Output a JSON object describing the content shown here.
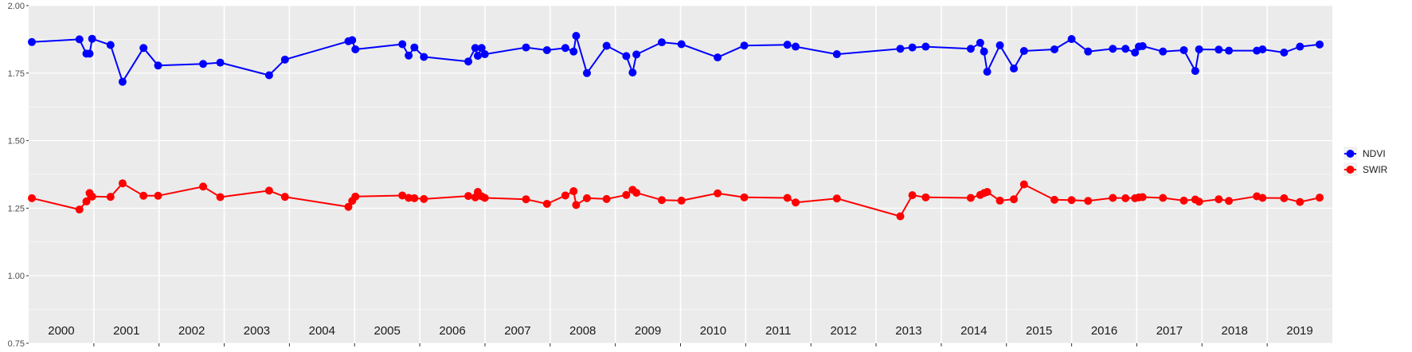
{
  "chart_data": {
    "type": "line",
    "ylim": [
      0.75,
      2.0
    ],
    "xlim": [
      2000.0,
      2020.0
    ],
    "y_ticks": [
      "0.75",
      "1.00",
      "1.25",
      "1.50",
      "1.75",
      "2.00"
    ],
    "year_labels": [
      "2000",
      "2001",
      "2002",
      "2003",
      "2004",
      "2005",
      "2006",
      "2007",
      "2008",
      "2009",
      "2010",
      "2011",
      "2012",
      "2013",
      "2014",
      "2015",
      "2016",
      "2017",
      "2018",
      "2019"
    ],
    "grid": true,
    "legend_position": "right",
    "series": [
      {
        "name": "NDVI",
        "color": "#0000FF",
        "points": [
          [
            2000.0,
            1.865
          ],
          [
            2000.75,
            1.875
          ],
          [
            2000.86,
            1.822
          ],
          [
            2000.91,
            1.822
          ],
          [
            2000.95,
            1.877
          ],
          [
            2001.24,
            1.854
          ],
          [
            2001.43,
            1.718
          ],
          [
            2001.76,
            1.843
          ],
          [
            2001.99,
            1.778
          ],
          [
            2002.7,
            1.784
          ],
          [
            2002.97,
            1.789
          ],
          [
            2003.74,
            1.742
          ],
          [
            2003.99,
            1.8
          ],
          [
            2004.99,
            1.868
          ],
          [
            2005.05,
            1.872
          ],
          [
            2005.1,
            1.838
          ],
          [
            2005.84,
            1.857
          ],
          [
            2005.94,
            1.815
          ],
          [
            2006.03,
            1.845
          ],
          [
            2006.18,
            1.81
          ],
          [
            2006.88,
            1.793
          ],
          [
            2006.99,
            1.843
          ],
          [
            2007.03,
            1.814
          ],
          [
            2007.09,
            1.843
          ],
          [
            2007.14,
            1.82
          ],
          [
            2007.79,
            1.845
          ],
          [
            2008.12,
            1.835
          ],
          [
            2008.41,
            1.843
          ],
          [
            2008.54,
            1.83
          ],
          [
            2008.58,
            1.888
          ],
          [
            2008.75,
            1.75
          ],
          [
            2009.06,
            1.851
          ],
          [
            2009.37,
            1.813
          ],
          [
            2009.47,
            1.752
          ],
          [
            2009.53,
            1.819
          ],
          [
            2009.93,
            1.864
          ],
          [
            2010.24,
            1.857
          ],
          [
            2010.81,
            1.808
          ],
          [
            2011.23,
            1.852
          ],
          [
            2011.91,
            1.855
          ],
          [
            2012.04,
            1.848
          ],
          [
            2012.69,
            1.82
          ],
          [
            2013.69,
            1.84
          ],
          [
            2013.88,
            1.845
          ],
          [
            2014.09,
            1.848
          ],
          [
            2014.8,
            1.84
          ],
          [
            2014.95,
            1.862
          ],
          [
            2015.01,
            1.83
          ],
          [
            2015.06,
            1.755
          ],
          [
            2015.26,
            1.853
          ],
          [
            2015.48,
            1.767
          ],
          [
            2015.64,
            1.832
          ],
          [
            2016.12,
            1.838
          ],
          [
            2016.39,
            1.876
          ],
          [
            2016.65,
            1.83
          ],
          [
            2017.04,
            1.84
          ],
          [
            2017.24,
            1.84
          ],
          [
            2017.39,
            1.826
          ],
          [
            2017.45,
            1.848
          ],
          [
            2017.51,
            1.85
          ],
          [
            2017.83,
            1.83
          ],
          [
            2018.16,
            1.835
          ],
          [
            2018.34,
            1.758
          ],
          [
            2018.4,
            1.838
          ],
          [
            2018.71,
            1.837
          ],
          [
            2018.87,
            1.833
          ],
          [
            2019.31,
            1.833
          ],
          [
            2019.4,
            1.838
          ],
          [
            2019.74,
            1.826
          ],
          [
            2019.99,
            1.848
          ],
          [
            2020.3,
            1.856
          ]
        ]
      },
      {
        "name": "SWIR",
        "color": "#FF0000",
        "points": [
          [
            2000.0,
            1.287
          ],
          [
            2000.75,
            1.245
          ],
          [
            2000.86,
            1.275
          ],
          [
            2000.91,
            1.306
          ],
          [
            2000.95,
            1.293
          ],
          [
            2001.24,
            1.292
          ],
          [
            2001.43,
            1.342
          ],
          [
            2001.76,
            1.296
          ],
          [
            2001.99,
            1.296
          ],
          [
            2002.7,
            1.33
          ],
          [
            2002.97,
            1.291
          ],
          [
            2003.74,
            1.315
          ],
          [
            2003.99,
            1.292
          ],
          [
            2004.99,
            1.255
          ],
          [
            2005.05,
            1.277
          ],
          [
            2005.1,
            1.293
          ],
          [
            2005.84,
            1.297
          ],
          [
            2005.94,
            1.288
          ],
          [
            2006.03,
            1.287
          ],
          [
            2006.18,
            1.284
          ],
          [
            2006.88,
            1.295
          ],
          [
            2006.99,
            1.29
          ],
          [
            2007.03,
            1.31
          ],
          [
            2007.09,
            1.294
          ],
          [
            2007.14,
            1.288
          ],
          [
            2007.79,
            1.283
          ],
          [
            2008.12,
            1.266
          ],
          [
            2008.41,
            1.297
          ],
          [
            2008.54,
            1.313
          ],
          [
            2008.58,
            1.262
          ],
          [
            2008.75,
            1.287
          ],
          [
            2009.06,
            1.284
          ],
          [
            2009.37,
            1.299
          ],
          [
            2009.47,
            1.318
          ],
          [
            2009.53,
            1.307
          ],
          [
            2009.93,
            1.28
          ],
          [
            2010.24,
            1.278
          ],
          [
            2010.81,
            1.305
          ],
          [
            2011.23,
            1.29
          ],
          [
            2011.91,
            1.288
          ],
          [
            2012.04,
            1.271
          ],
          [
            2012.69,
            1.286
          ],
          [
            2013.69,
            1.22
          ],
          [
            2013.88,
            1.298
          ],
          [
            2014.09,
            1.29
          ],
          [
            2014.8,
            1.288
          ],
          [
            2014.95,
            1.299
          ],
          [
            2015.01,
            1.306
          ],
          [
            2015.06,
            1.31
          ],
          [
            2015.26,
            1.278
          ],
          [
            2015.48,
            1.283
          ],
          [
            2015.64,
            1.338
          ],
          [
            2016.12,
            1.281
          ],
          [
            2016.39,
            1.28
          ],
          [
            2016.65,
            1.277
          ],
          [
            2017.04,
            1.288
          ],
          [
            2017.24,
            1.287
          ],
          [
            2017.39,
            1.287
          ],
          [
            2017.45,
            1.29
          ],
          [
            2017.51,
            1.291
          ],
          [
            2017.83,
            1.288
          ],
          [
            2018.16,
            1.278
          ],
          [
            2018.34,
            1.282
          ],
          [
            2018.4,
            1.274
          ],
          [
            2018.71,
            1.283
          ],
          [
            2018.87,
            1.277
          ],
          [
            2019.31,
            1.294
          ],
          [
            2019.4,
            1.288
          ],
          [
            2019.74,
            1.287
          ],
          [
            2019.99,
            1.273
          ],
          [
            2020.3,
            1.289
          ]
        ]
      }
    ]
  }
}
